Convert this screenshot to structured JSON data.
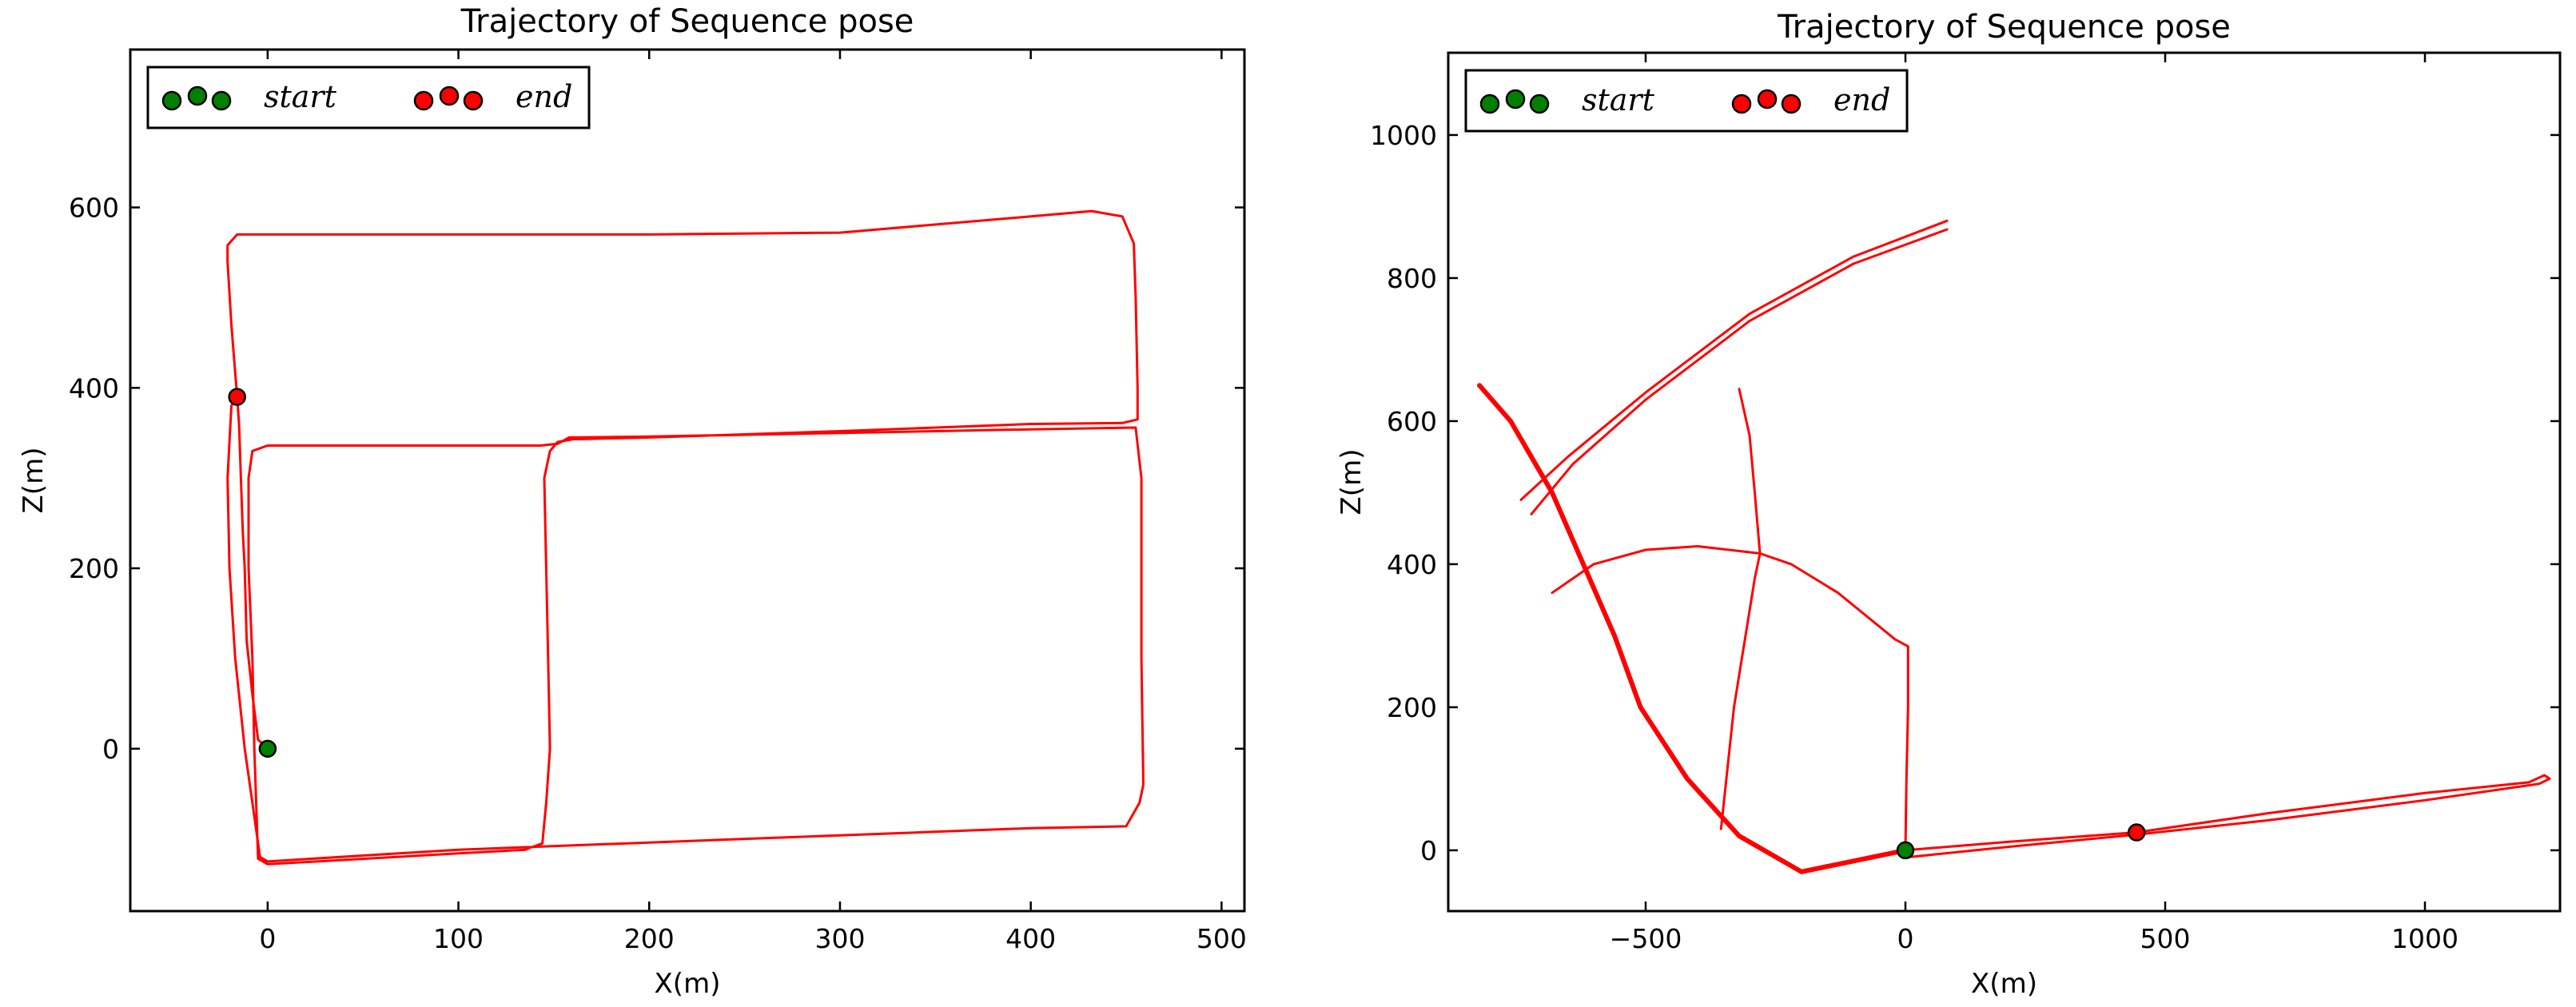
{
  "colors": {
    "trajectory": "#ff0000",
    "start": "#008000",
    "end": "#ff0000"
  },
  "chart_data": [
    {
      "type": "line",
      "title": "Trajectory of Sequence pose",
      "xlabel": "X(m)",
      "ylabel": "Z(m)",
      "xlim": [
        -72,
        512
      ],
      "ylim": [
        -180,
        775
      ],
      "xticks": [
        0,
        100,
        200,
        300,
        400,
        500
      ],
      "yticks": [
        0,
        200,
        400,
        600
      ],
      "grid": false,
      "legend": {
        "position": "top-left",
        "entries": [
          {
            "label": "start",
            "color": "#008000"
          },
          {
            "label": "end",
            "color": "#ff0000"
          }
        ]
      },
      "start": [
        0,
        0
      ],
      "end": [
        -16,
        390
      ],
      "series": [
        {
          "points": [
            [
              0,
              0
            ],
            [
              -5,
              10
            ],
            [
              -8,
              60
            ],
            [
              -11,
              120
            ],
            [
              -12,
              200
            ],
            [
              -13,
              240
            ],
            [
              -14,
              300
            ],
            [
              -15,
              360
            ],
            [
              -16,
              390
            ],
            [
              -19,
              470
            ],
            [
              -21,
              540
            ],
            [
              -21,
              558
            ],
            [
              -16,
              570
            ],
            [
              0,
              570
            ],
            [
              100,
              570
            ],
            [
              200,
              570
            ],
            [
              300,
              572
            ],
            [
              400,
              590
            ],
            [
              432,
              596
            ],
            [
              448,
              590
            ],
            [
              454,
              560
            ],
            [
              455,
              500
            ],
            [
              456,
              400
            ],
            [
              456,
              365
            ],
            [
              448,
              361
            ],
            [
              400,
              360
            ],
            [
              300,
              352
            ],
            [
              200,
              345
            ],
            [
              160,
              343
            ],
            [
              152,
              340
            ],
            [
              148,
              330
            ],
            [
              145,
              300
            ],
            [
              146,
              200
            ],
            [
              147,
              100
            ],
            [
              148,
              0
            ],
            [
              146,
              -60
            ],
            [
              144,
              -105
            ],
            [
              135,
              -112
            ],
            [
              100,
              -116
            ],
            [
              0,
              -128
            ],
            [
              -5,
              -122
            ],
            [
              -6,
              -60
            ],
            [
              -7,
              0
            ],
            [
              -8,
              100
            ],
            [
              -10,
              200
            ],
            [
              -10,
              300
            ],
            [
              -8,
              330
            ],
            [
              0,
              336
            ],
            [
              100,
              336
            ],
            [
              143,
              336
            ],
            [
              152,
              338
            ],
            [
              158,
              345
            ],
            [
              200,
              346
            ],
            [
              300,
              350
            ],
            [
              400,
              354
            ],
            [
              455,
              356
            ],
            [
              458,
              300
            ],
            [
              458,
              100
            ],
            [
              459,
              -40
            ],
            [
              457,
              -60
            ],
            [
              450,
              -86
            ],
            [
              400,
              -88
            ],
            [
              300,
              -96
            ],
            [
              200,
              -104
            ],
            [
              100,
              -112
            ],
            [
              0,
              -125
            ],
            [
              -4,
              -120
            ],
            [
              -8,
              -60
            ],
            [
              -12,
              0
            ],
            [
              -17,
              100
            ],
            [
              -20,
              200
            ],
            [
              -21,
              300
            ],
            [
              -19,
              380
            ],
            [
              -17,
              388
            ]
          ]
        }
      ]
    },
    {
      "type": "line",
      "title": "Trajectory of Sequence pose",
      "xlabel": "X(m)",
      "ylabel": "Z(m)",
      "xlim": [
        -880,
        1260
      ],
      "ylim": [
        -85,
        1115
      ],
      "xticks": [
        -500,
        0,
        500,
        1000
      ],
      "xticklabels": [
        "−500",
        "0",
        "500",
        "1000"
      ],
      "yticks": [
        0,
        200,
        400,
        600,
        800,
        1000
      ],
      "grid": false,
      "legend": {
        "position": "top-left",
        "entries": [
          {
            "label": "start",
            "color": "#008000"
          },
          {
            "label": "end",
            "color": "#ff0000"
          }
        ]
      },
      "start": [
        0,
        0
      ],
      "end": [
        445,
        25
      ],
      "series": [
        {
          "points": [
            [
              0,
              0
            ],
            [
              -200,
              -30
            ],
            [
              -320,
              20
            ],
            [
              -420,
              100
            ],
            [
              -510,
              200
            ],
            [
              -560,
              300
            ],
            [
              -620,
              400
            ],
            [
              -680,
              500
            ],
            [
              -760,
              600
            ],
            [
              -820,
              650
            ]
          ],
          "thick": true
        },
        {
          "points": [
            [
              -740,
              490
            ],
            [
              -650,
              550
            ],
            [
              -500,
              640
            ],
            [
              -300,
              750
            ],
            [
              -100,
              830
            ],
            [
              80,
              880
            ]
          ]
        },
        {
          "points": [
            [
              -720,
              470
            ],
            [
              -640,
              540
            ],
            [
              -500,
              630
            ],
            [
              -300,
              740
            ],
            [
              -100,
              820
            ],
            [
              80,
              868
            ]
          ]
        },
        {
          "points": [
            [
              -680,
              360
            ],
            [
              -600,
              400
            ],
            [
              -500,
              420
            ],
            [
              -400,
              425
            ],
            [
              -280,
              415
            ]
          ]
        },
        {
          "points": [
            [
              -280,
              415
            ],
            [
              -220,
              400
            ],
            [
              -130,
              360
            ],
            [
              -20,
              295
            ],
            [
              5,
              285
            ],
            [
              5,
              200
            ],
            [
              2,
              100
            ],
            [
              0,
              0
            ]
          ]
        },
        {
          "points": [
            [
              -280,
              415
            ],
            [
              -290,
              500
            ],
            [
              -300,
              580
            ],
            [
              -320,
              645
            ]
          ]
        },
        {
          "points": [
            [
              -280,
              415
            ],
            [
              -290,
              380
            ],
            [
              -330,
              200
            ],
            [
              -355,
              30
            ]
          ]
        },
        {
          "points": [
            [
              0,
              0
            ],
            [
              200,
              12
            ],
            [
              445,
              25
            ],
            [
              700,
              52
            ],
            [
              1000,
              80
            ],
            [
              1200,
              95
            ],
            [
              1230,
              105
            ],
            [
              1240,
              100
            ],
            [
              1220,
              93
            ],
            [
              1000,
              70
            ],
            [
              700,
              42
            ],
            [
              445,
              22
            ],
            [
              200,
              5
            ],
            [
              0,
              -10
            ]
          ]
        }
      ]
    }
  ]
}
